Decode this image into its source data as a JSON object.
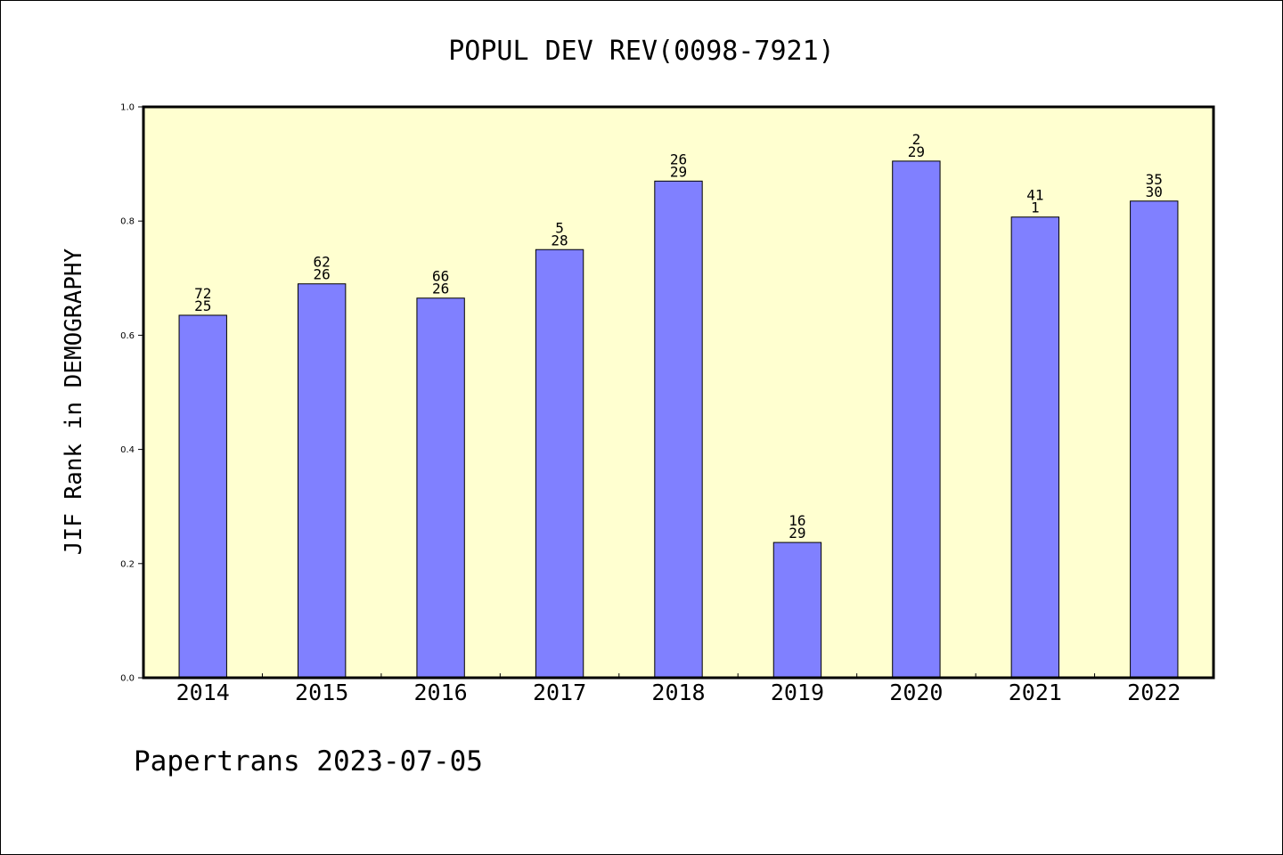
{
  "chart_data": {
    "type": "bar",
    "title": "POPUL DEV REV(0098-7921)",
    "xlabel": "",
    "ylabel": "JIF Rank in DEMOGRAPHY",
    "ylim": [
      0,
      1.0
    ],
    "yticks": [
      "0.0",
      "0.2",
      "0.4",
      "0.6",
      "0.8",
      "1.0"
    ],
    "categories": [
      "2014",
      "2015",
      "2016",
      "2017",
      "2018",
      "2019",
      "2020",
      "2021",
      "2022"
    ],
    "values": [
      0.635,
      0.69,
      0.665,
      0.75,
      0.87,
      0.237,
      0.905,
      0.807,
      0.835
    ],
    "labels_top": [
      "72",
      "62",
      "66",
      "5",
      "26",
      "16",
      "2",
      "41",
      "35"
    ],
    "labels_bottom": [
      "25",
      "26",
      "26",
      "28",
      "29",
      "29",
      "29",
      "1",
      "30"
    ],
    "grid": false,
    "colors": {
      "plot_background": "#ffffd0",
      "bar": "#8080ff"
    }
  },
  "footer": {
    "text": "Papertrans 2023-07-05"
  }
}
